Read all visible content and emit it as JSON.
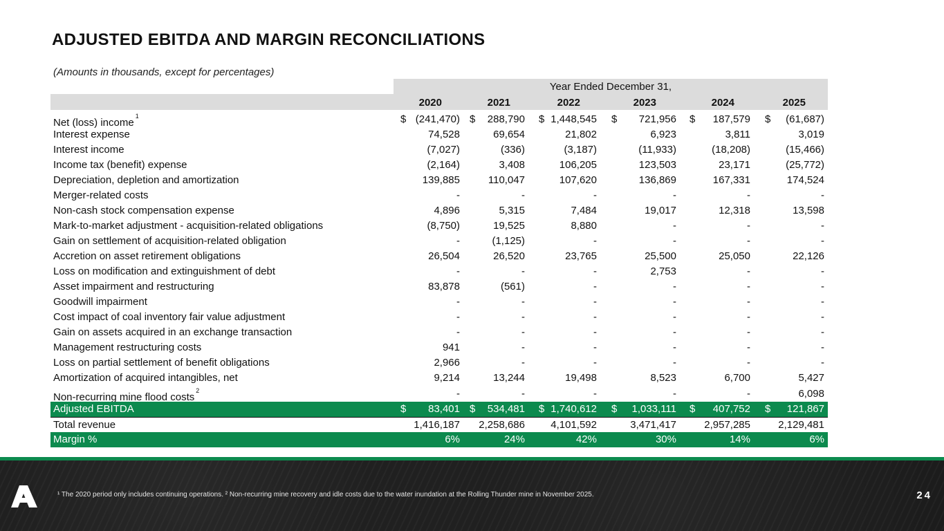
{
  "title": "ADJUSTED EBITDA AND MARGIN RECONCILIATIONS",
  "subtitle": "(Amounts in thousands, except for percentages)",
  "header": {
    "caption": "Year Ended December 31,",
    "years": [
      "2020",
      "2021",
      "2022",
      "2023",
      "2024",
      "2025"
    ]
  },
  "rows": [
    {
      "label": "Net (loss) income",
      "sup": "1",
      "dollar": true,
      "values": [
        "(241,470)",
        "288,790",
        "1,448,545",
        "721,956",
        "187,579",
        "(61,687)"
      ]
    },
    {
      "label": "Interest expense",
      "values": [
        "74,528",
        "69,654",
        "21,802",
        "6,923",
        "3,811",
        "3,019"
      ]
    },
    {
      "label": "Interest income",
      "values": [
        "(7,027)",
        "(336)",
        "(3,187)",
        "(11,933)",
        "(18,208)",
        "(15,466)"
      ]
    },
    {
      "label": "Income tax (benefit) expense",
      "values": [
        "(2,164)",
        "3,408",
        "106,205",
        "123,503",
        "23,171",
        "(25,772)"
      ]
    },
    {
      "label": "Depreciation, depletion and amortization",
      "values": [
        "139,885",
        "110,047",
        "107,620",
        "136,869",
        "167,331",
        "174,524"
      ]
    },
    {
      "label": "Merger-related costs",
      "values": [
        "-",
        "-",
        "-",
        "-",
        "-",
        "-"
      ]
    },
    {
      "label": "Non-cash stock compensation expense",
      "values": [
        "4,896",
        "5,315",
        "7,484",
        "19,017",
        "12,318",
        "13,598"
      ]
    },
    {
      "label": "Mark-to-market adjustment - acquisition-related obligations",
      "values": [
        "(8,750)",
        "19,525",
        "8,880",
        "-",
        "-",
        "-"
      ]
    },
    {
      "label": "Gain on settlement of acquisition-related obligation",
      "values": [
        "-",
        "(1,125)",
        "-",
        "-",
        "-",
        "-"
      ]
    },
    {
      "label": "Accretion on asset retirement obligations",
      "values": [
        "26,504",
        "26,520",
        "23,765",
        "25,500",
        "25,050",
        "22,126"
      ]
    },
    {
      "label": "Loss on modification and extinguishment of debt",
      "values": [
        "-",
        "-",
        "-",
        "2,753",
        "-",
        "-"
      ]
    },
    {
      "label": "Asset impairment and restructuring",
      "values": [
        "83,878",
        "(561)",
        "-",
        "-",
        "-",
        "-"
      ]
    },
    {
      "label": "Goodwill impairment",
      "values": [
        "-",
        "-",
        "-",
        "-",
        "-",
        "-"
      ]
    },
    {
      "label": "Cost impact of coal inventory fair value adjustment",
      "values": [
        "-",
        "-",
        "-",
        "-",
        "-",
        "-"
      ]
    },
    {
      "label": "Gain on assets acquired in an exchange transaction",
      "values": [
        "-",
        "-",
        "-",
        "-",
        "-",
        "-"
      ]
    },
    {
      "label": "Management restructuring costs",
      "values": [
        "941",
        "-",
        "-",
        "-",
        "-",
        "-"
      ]
    },
    {
      "label": "Loss on partial settlement of benefit obligations",
      "values": [
        "2,966",
        "-",
        "-",
        "-",
        "-",
        "-"
      ]
    },
    {
      "label": "Amortization of acquired intangibles, net",
      "values": [
        "9,214",
        "13,244",
        "19,498",
        "8,523",
        "6,700",
        "5,427"
      ]
    },
    {
      "label": "Non-recurring mine flood costs",
      "sup": "2",
      "values": [
        "-",
        "-",
        "-",
        "-",
        "-",
        "6,098"
      ]
    },
    {
      "label": "Adjusted EBITDA",
      "dollar": true,
      "style": "green",
      "values": [
        "83,401",
        "534,481",
        "1,740,612",
        "1,033,111",
        "407,752",
        "121,867"
      ]
    },
    {
      "label": "Total revenue",
      "style": "total-rev",
      "values": [
        "1,416,187",
        "2,258,686",
        "4,101,592",
        "3,471,417",
        "2,957,285",
        "2,129,481"
      ]
    },
    {
      "label": "Margin %",
      "style": "green",
      "values": [
        "6%",
        "24%",
        "42%",
        "30%",
        "14%",
        "6%"
      ]
    }
  ],
  "dollar_sign": "$",
  "footnote": "¹ The 2020 period only includes continuing operations. ² Non-recurring mine recovery and idle costs due to the water inundation at the Rolling Thunder mine in November 2025.",
  "page_number": "24",
  "colors": {
    "accent": "#0c8a4e",
    "header_band": "#dcdcdc",
    "footer_bg": "#1b1b1b"
  }
}
